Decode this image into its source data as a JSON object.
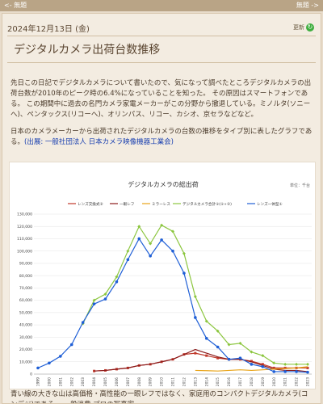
{
  "nav": {
    "prev_label": "<- 無題",
    "next_label": "無題 ->"
  },
  "post": {
    "date": "2024年12月13日 (金)",
    "edit_label": "更新",
    "title": "デジタルカメラ出荷台数推移",
    "para1": "先日この日記でデジタルカメラについて書いたので、気になって調べたところデジタルカメラの出荷台数が2010年のピーク時の6.4%になっていることを知った。 その原因はスマートフォンである。 この期間中に過去の名門カメラ家電メーカーがこの分野から撤退している。ミノルタ(ソニーへ)、ペンタックス(リコーへ)、オリンパス、リコー、カシオ、京セラなどなど。",
    "para2": "日本のカメラメーカーから出荷されたデジタルカメラの台数の推移をタイプ別に表したグラフである。",
    "source_link": "(出展: 一般社団法人 日本カメラ映像機器工業会)",
    "para3": "青い線の大きな山は高価格・高性能の一眼レフではなく、家庭用のコンパクトデジタルカメラ(コンデジ)である。 一般消費 プロの写真家 ... "
  },
  "chart_data": {
    "type": "line",
    "title": "デジタルカメラの総出荷",
    "unit_label": "単位：千台",
    "x": [
      1999,
      2000,
      2001,
      2002,
      2003,
      2004,
      2005,
      2006,
      2007,
      2008,
      2009,
      2010,
      2011,
      2012,
      2013,
      2014,
      2015,
      2016,
      2017,
      2018,
      2019,
      2020,
      2021,
      2022,
      2023
    ],
    "ylim": [
      0,
      130000
    ],
    "yticks": [
      "0",
      "10,000",
      "20,000",
      "30,000",
      "40,000",
      "50,000",
      "60,000",
      "70,000",
      "80,000",
      "90,000",
      "100,000",
      "110,000",
      "120,000",
      "130,000"
    ],
    "series": [
      {
        "name": "レンズ交換式②",
        "color": "#c0392b",
        "marker": "square",
        "values": [
          null,
          null,
          null,
          null,
          null,
          2500,
          3000,
          4000,
          5000,
          7000,
          8000,
          10000,
          12000,
          16000,
          17000,
          15000,
          13000,
          12000,
          12000,
          10500,
          8000,
          5000,
          5000,
          5000,
          5000
        ]
      },
      {
        "name": "一眼レフ",
        "color": "#8b1a1a",
        "marker": "line",
        "values": [
          null,
          null,
          null,
          null,
          null,
          2500,
          3000,
          4000,
          5000,
          7000,
          8000,
          10000,
          12000,
          16000,
          20000,
          17000,
          14000,
          12000,
          12000,
          10000,
          7000,
          4000,
          3000,
          3000,
          2000
        ]
      },
      {
        "name": "ミラーレス",
        "color": "#e8a317",
        "marker": "line",
        "values": [
          null,
          null,
          null,
          null,
          null,
          null,
          null,
          null,
          null,
          null,
          null,
          null,
          null,
          null,
          3000,
          2800,
          2500,
          3000,
          3500,
          3000,
          3500,
          4000,
          4500,
          5000,
          6000
        ]
      },
      {
        "name": "デジタルカメラ合計①(①+②)",
        "color": "#8cc63f",
        "marker": "diamond",
        "values": [
          null,
          null,
          null,
          null,
          41000,
          60000,
          65000,
          79000,
          100000,
          120000,
          106000,
          121000,
          116000,
          98000,
          63000,
          43000,
          35000,
          24000,
          25000,
          18000,
          15000,
          9000,
          8000,
          8000,
          8000
        ]
      },
      {
        "name": "レンズ一体型①",
        "color": "#1f5fd6",
        "marker": "circle",
        "values": [
          5000,
          9000,
          14500,
          24000,
          42000,
          57000,
          61000,
          75000,
          93000,
          110000,
          96000,
          109000,
          100000,
          82000,
          46000,
          29000,
          22000,
          12000,
          13000,
          8000,
          6000,
          2000,
          2000,
          2000,
          1500
        ]
      }
    ]
  }
}
